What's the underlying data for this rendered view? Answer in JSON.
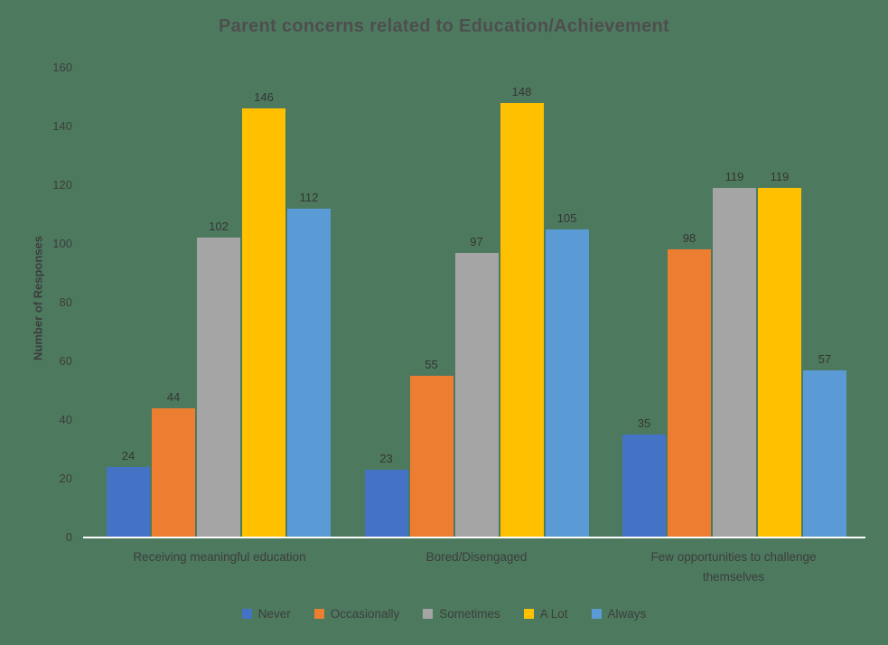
{
  "chart_data": {
    "type": "bar",
    "title": "Parent concerns related to Education/Achievement",
    "ylabel": "Number of Responses",
    "xlabel": "",
    "ylim": [
      0,
      160
    ],
    "yticks": [
      0,
      20,
      40,
      60,
      80,
      100,
      120,
      140,
      160
    ],
    "grid": false,
    "legend_position": "bottom",
    "data_labels": true,
    "background_color": "#4d7a5e",
    "axis_line_color": "#ffffff",
    "categories": [
      "Receiving meaningful education",
      "Bored/Disengaged",
      "Few opportunities to challenge themselves"
    ],
    "series": [
      {
        "name": "Never",
        "color": "#4472C4",
        "values": [
          24,
          23,
          35
        ]
      },
      {
        "name": "Occasionally",
        "color": "#ED7D31",
        "values": [
          44,
          55,
          98
        ]
      },
      {
        "name": "Sometimes",
        "color": "#A5A5A5",
        "values": [
          102,
          97,
          119
        ]
      },
      {
        "name": "A Lot",
        "color": "#FFC000",
        "values": [
          146,
          148,
          119
        ]
      },
      {
        "name": "Always",
        "color": "#5B9BD5",
        "values": [
          112,
          105,
          57
        ]
      }
    ]
  }
}
